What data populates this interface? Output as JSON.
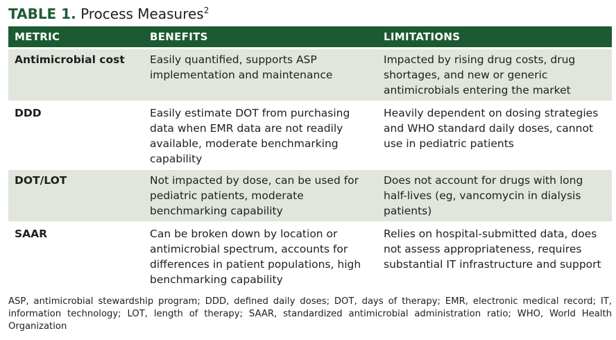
{
  "caption": {
    "number": "TABLE 1.",
    "title": "Process Measures",
    "superscript": "2"
  },
  "table": {
    "headers": [
      "METRIC",
      "BENEFITS",
      "LIMITATIONS"
    ],
    "rows": [
      {
        "metric": "Antimicrobial cost",
        "benefits": "Easily quantified, supports ASP implementation and maintenance",
        "limitations": "Impacted by rising drug costs, drug shortages, and new or generic antimicrobials entering the market"
      },
      {
        "metric": "DDD",
        "benefits": "Easily estimate DOT from purchasing data when EMR data are not readily available, moderate benchmarking capability",
        "limitations": "Heavily dependent on dosing strategies and WHO standard daily doses, cannot use in pediatric patients"
      },
      {
        "metric": "DOT/LOT",
        "benefits": "Not impacted by dose, can be used for pediatric patients, moderate benchmarking capability",
        "limitations": "Does not account for drugs with long half-lives (eg, vancomycin in dialysis patients)"
      },
      {
        "metric": "SAAR",
        "benefits": "Can be broken down by location or antimicrobial spectrum, accounts for differences in patient populations, high benchmarking capability",
        "limitations": "Relies on hospital-submitted data, does not assess appropriateness, requires substantial IT infrastructure and support"
      }
    ]
  },
  "footnote": "ASP, antimicrobial stewardship program; DDD, defined daily doses; DOT, days of therapy; EMR, electronic medical record; IT, information technology; LOT, length of therapy; SAAR, standardized antimicrobial administration ratio; WHO, World Health Organization",
  "colors": {
    "header_bg": "#1c5a31",
    "caption_accent": "#1f5c34",
    "row_shade": "#e1e6dd"
  }
}
